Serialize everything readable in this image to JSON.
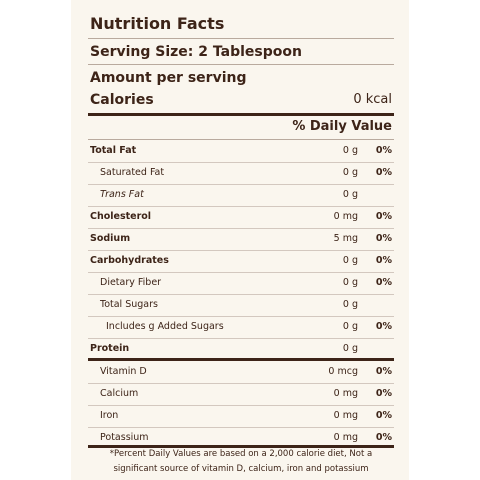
{
  "title": "Nutrition Facts",
  "serving_size": "Serving Size: 2 Tablespoon",
  "amount_per_serving": "Amount per serving",
  "calories": {
    "label": "Calories",
    "value": "0 kcal"
  },
  "daily_value_header": "% Daily Value",
  "nutrients": [
    {
      "name": "Total Fat",
      "amount": "0 g",
      "dv": "0%"
    },
    {
      "name": "Saturated Fat",
      "amount": "0 g",
      "dv": "0%"
    },
    {
      "name": "Trans Fat",
      "amount": "0 g",
      "dv": ""
    },
    {
      "name": "Cholesterol",
      "amount": "0 mg",
      "dv": "0%"
    },
    {
      "name": "Sodium",
      "amount": "5 mg",
      "dv": "0%"
    },
    {
      "name": "Carbohydrates",
      "amount": "0 g",
      "dv": "0%"
    },
    {
      "name": "Dietary Fiber",
      "amount": "0 g",
      "dv": "0%"
    },
    {
      "name": "Total Sugars",
      "amount": "0 g",
      "dv": ""
    },
    {
      "name": "Includes g Added Sugars",
      "amount": "0 g",
      "dv": "0%"
    },
    {
      "name": "Protein",
      "amount": "0 g",
      "dv": ""
    },
    {
      "name": "Vitamin D",
      "amount": "0 mcg",
      "dv": "0%"
    },
    {
      "name": "Calcium",
      "amount": "0 mg",
      "dv": "0%"
    },
    {
      "name": "Iron",
      "amount": "0 mg",
      "dv": "0%"
    },
    {
      "name": "Potassium",
      "amount": "0 mg",
      "dv": "0%"
    }
  ],
  "footnote": "*Percent Daily Values are based on a 2,000 calorie diet, Not a significant source of vitamin D, calcium, iron and potassium"
}
